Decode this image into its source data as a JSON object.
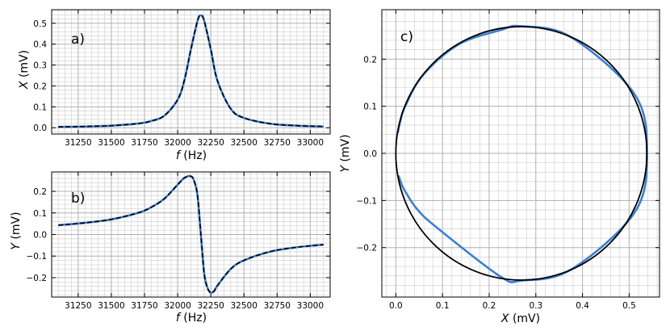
{
  "colors": {
    "measured": "#3b7fd1",
    "fit": "#000000",
    "grid_major": "#b0b0b0",
    "grid_minor": "#d2d2d2"
  },
  "chart_data": [
    {
      "panel_label": "a)",
      "type": "line",
      "xlabel_var": "f",
      "xlabel_unit": "(Hz)",
      "ylabel_var": "X",
      "ylabel_unit": "(mV)",
      "xlim": [
        31050,
        33150
      ],
      "ylim": [
        -0.03,
        0.565
      ],
      "xticks": [
        31250,
        31500,
        31750,
        32000,
        32250,
        32500,
        32750,
        33000
      ],
      "xtick_labels": [
        "31250",
        "31500",
        "31750",
        "32000",
        "32250",
        "32500",
        "32750",
        "33000"
      ],
      "yticks": [
        0.0,
        0.1,
        0.2,
        0.3,
        0.4,
        0.5
      ],
      "ytick_labels": [
        "0.0",
        "0.1",
        "0.2",
        "0.3",
        "0.4",
        "0.5"
      ],
      "grid": true,
      "series": [
        {
          "role": "measured",
          "style": "solid",
          "x": [
            31100,
            31300,
            31500,
            31700,
            31800,
            31900,
            32000,
            32050,
            32100,
            32150,
            32175,
            32200,
            32250,
            32300,
            32400,
            32500,
            32700,
            32900,
            33100
          ],
          "y": [
            0.004,
            0.006,
            0.01,
            0.02,
            0.032,
            0.058,
            0.134,
            0.225,
            0.375,
            0.512,
            0.538,
            0.512,
            0.375,
            0.225,
            0.091,
            0.047,
            0.019,
            0.01,
            0.006
          ]
        },
        {
          "role": "fit",
          "style": "dashed",
          "x": [
            31100,
            31300,
            31500,
            31700,
            31800,
            31900,
            32000,
            32050,
            32100,
            32150,
            32175,
            32200,
            32250,
            32300,
            32400,
            32500,
            32700,
            32900,
            33100
          ],
          "y": [
            0.004,
            0.006,
            0.01,
            0.02,
            0.032,
            0.058,
            0.134,
            0.225,
            0.375,
            0.512,
            0.538,
            0.512,
            0.375,
            0.225,
            0.091,
            0.047,
            0.019,
            0.01,
            0.006
          ]
        }
      ]
    },
    {
      "panel_label": "b)",
      "type": "line",
      "xlabel_var": "f",
      "xlabel_unit": "(Hz)",
      "ylabel_var": "Y",
      "ylabel_unit": "(mV)",
      "xlim": [
        31050,
        33150
      ],
      "ylim": [
        -0.29,
        0.29
      ],
      "xticks": [
        31250,
        31500,
        31750,
        32000,
        32250,
        32500,
        32750,
        33000
      ],
      "xtick_labels": [
        "31250",
        "31500",
        "31750",
        "32000",
        "32250",
        "32500",
        "32750",
        "33000"
      ],
      "yticks": [
        -0.2,
        -0.1,
        0.0,
        0.1,
        0.2
      ],
      "ytick_labels": [
        "−0.2",
        "−0.1",
        "0.0",
        "0.1",
        "0.2"
      ],
      "grid": true,
      "series": [
        {
          "role": "measured",
          "style": "solid",
          "x": [
            31100,
            31300,
            31500,
            31700,
            31800,
            31900,
            32000,
            32050,
            32100,
            32125,
            32150,
            32175,
            32200,
            32225,
            32250,
            32275,
            32300,
            32400,
            32500,
            32700,
            32900,
            33100
          ],
          "y": [
            0.043,
            0.054,
            0.07,
            0.1,
            0.126,
            0.166,
            0.231,
            0.262,
            0.27,
            0.247,
            0.18,
            0.0,
            -0.18,
            -0.247,
            -0.27,
            -0.262,
            -0.237,
            -0.16,
            -0.12,
            -0.079,
            -0.059,
            -0.047
          ]
        },
        {
          "role": "fit",
          "style": "dashed",
          "x": [
            31100,
            31300,
            31500,
            31700,
            31800,
            31900,
            32000,
            32050,
            32100,
            32125,
            32150,
            32175,
            32200,
            32225,
            32250,
            32275,
            32300,
            32400,
            32500,
            32700,
            32900,
            33100
          ],
          "y": [
            0.043,
            0.054,
            0.07,
            0.1,
            0.126,
            0.166,
            0.231,
            0.262,
            0.27,
            0.247,
            0.18,
            0.0,
            -0.18,
            -0.247,
            -0.27,
            -0.262,
            -0.237,
            -0.16,
            -0.12,
            -0.079,
            -0.059,
            -0.047
          ]
        }
      ]
    },
    {
      "panel_label": "c)",
      "type": "line",
      "xlabel_var": "X",
      "xlabel_unit": "(mV)",
      "ylabel_var": "Y",
      "ylabel_unit": "(mV)",
      "xlim": [
        -0.03,
        0.565
      ],
      "ylim": [
        -0.305,
        0.305
      ],
      "xticks": [
        0.0,
        0.1,
        0.2,
        0.3,
        0.4,
        0.5
      ],
      "xtick_labels": [
        "0.0",
        "0.1",
        "0.2",
        "0.3",
        "0.4",
        "0.5"
      ],
      "yticks": [
        -0.2,
        -0.1,
        0.0,
        0.1,
        0.2
      ],
      "ytick_labels": [
        "−0.2",
        "−0.1",
        "0.0",
        "0.1",
        "0.2"
      ],
      "grid": true,
      "series": [
        {
          "role": "measured",
          "style": "solid",
          "x": [
            0.004,
            0.01,
            0.02,
            0.058,
            0.134,
            0.225,
            0.269,
            0.375,
            0.512,
            0.538,
            0.512,
            0.375,
            0.269,
            0.225,
            0.091,
            0.047,
            0.019,
            0.01,
            0.006
          ],
          "y": [
            0.043,
            0.07,
            0.1,
            0.166,
            0.231,
            0.262,
            0.27,
            0.247,
            0.125,
            0.0,
            -0.125,
            -0.247,
            -0.27,
            -0.262,
            -0.16,
            -0.12,
            -0.079,
            -0.059,
            -0.047
          ]
        },
        {
          "role": "fit",
          "style": "solid",
          "center": [
            0.269,
            0.0
          ],
          "radius": 0.269
        }
      ]
    }
  ]
}
